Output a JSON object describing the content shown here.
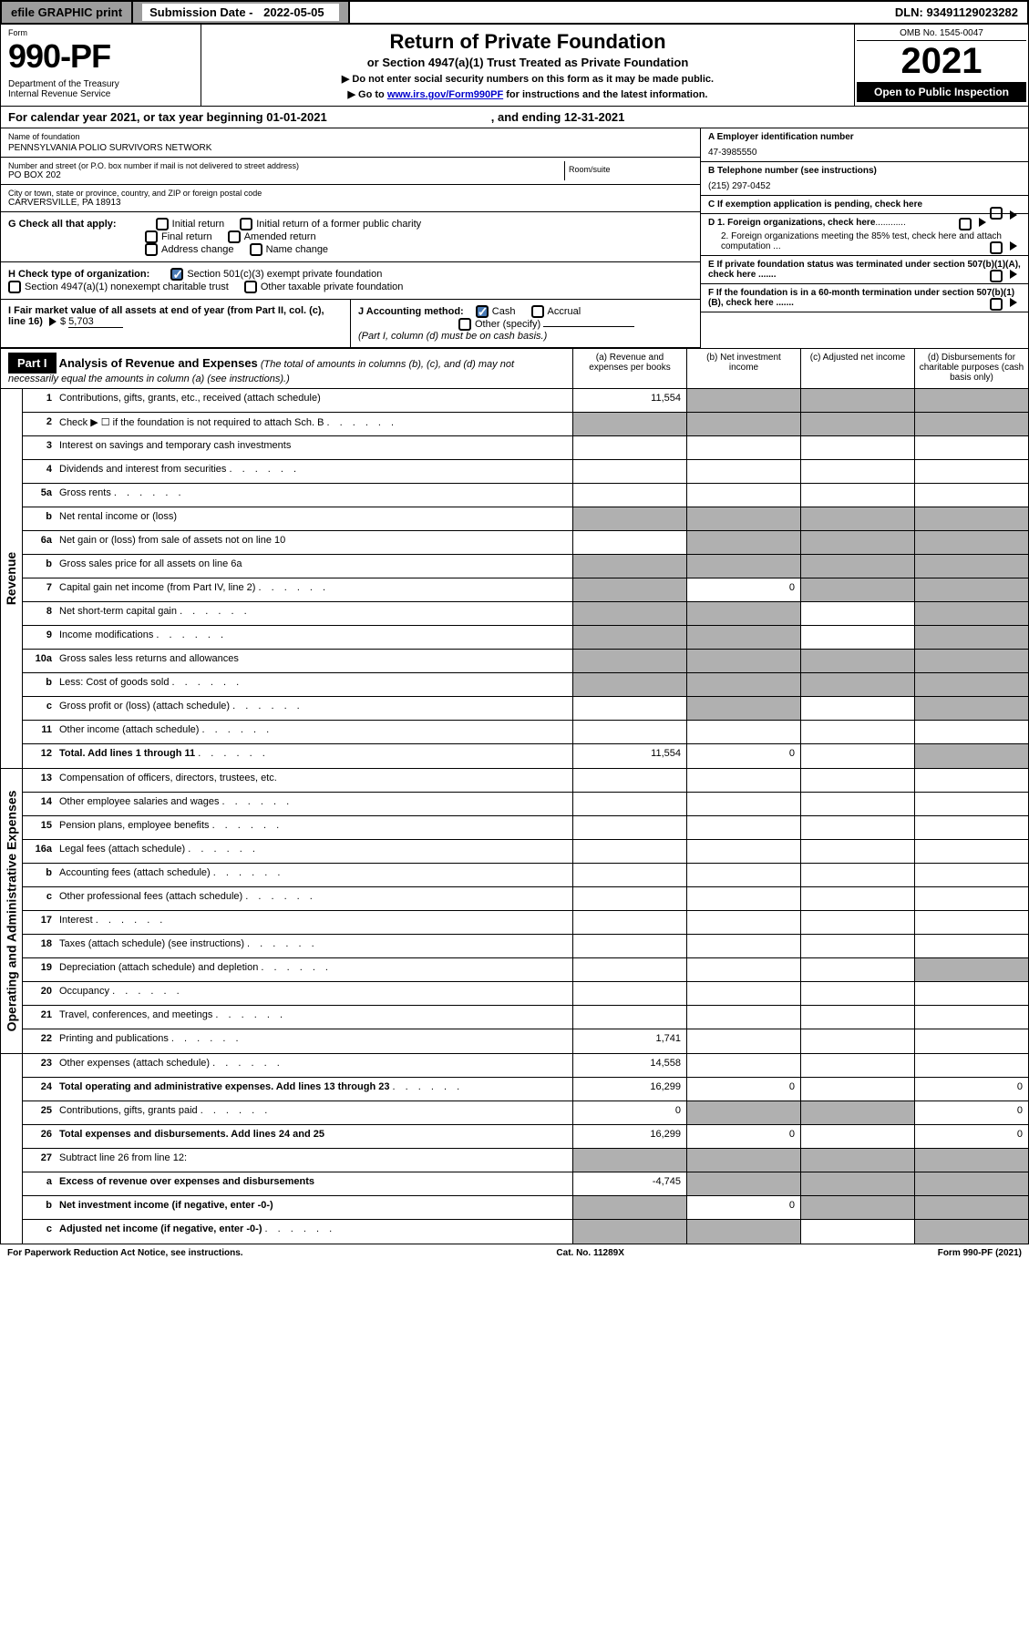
{
  "topbar": {
    "efile": "efile GRAPHIC print",
    "sub_label": "Submission Date - ",
    "sub_date": "2022-05-05",
    "dln": "DLN: 93491129023282"
  },
  "header": {
    "form_label": "Form",
    "form_no": "990-PF",
    "dept": "Department of the Treasury\nInternal Revenue Service",
    "title": "Return of Private Foundation",
    "subtitle": "or Section 4947(a)(1) Trust Treated as Private Foundation",
    "note1": "▶ Do not enter social security numbers on this form as it may be made public.",
    "note2_a": "▶ Go to ",
    "note2_link": "www.irs.gov/Form990PF",
    "note2_b": " for instructions and the latest information.",
    "omb": "OMB No. 1545-0047",
    "year": "2021",
    "open": "Open to Public Inspection"
  },
  "cal": {
    "a": "For calendar year 2021, or tax year beginning 01-01-2021",
    "b": ", and ending 12-31-2021"
  },
  "info": {
    "name_lbl": "Name of foundation",
    "name": "PENNSYLVANIA POLIO SURVIVORS NETWORK",
    "addr_lbl": "Number and street (or P.O. box number if mail is not delivered to street address)",
    "addr": "PO BOX 202",
    "room_lbl": "Room/suite",
    "city_lbl": "City or town, state or province, country, and ZIP or foreign postal code",
    "city": "CARVERSVILLE, PA  18913",
    "a_lbl": "A Employer identification number",
    "ein": "47-3985550",
    "b_lbl": "B Telephone number (see instructions)",
    "phone": "(215) 297-0452",
    "c_lbl": "C If exemption application is pending, check here",
    "d1": "D 1. Foreign organizations, check here",
    "d2": "2. Foreign organizations meeting the 85% test, check here and attach computation ...",
    "e": "E  If private foundation status was terminated under section 507(b)(1)(A), check here .......",
    "f": "F  If the foundation is in a 60-month termination under section 507(b)(1)(B), check here .......",
    "g_lbl": "G Check all that apply:",
    "g_opts": [
      "Initial return",
      "Initial return of a former public charity",
      "Final return",
      "Amended return",
      "Address change",
      "Name change"
    ],
    "h_lbl": "H Check type of organization:",
    "h1": "Section 501(c)(3) exempt private foundation",
    "h2": "Section 4947(a)(1) nonexempt charitable trust",
    "h3": "Other taxable private foundation",
    "i_lbl": "I Fair market value of all assets at end of year (from Part II, col. (c), line 16)",
    "i_val": "5,703",
    "j_lbl": "J Accounting method:",
    "j1": "Cash",
    "j2": "Accrual",
    "j3": "Other (specify)",
    "j_note": "(Part I, column (d) must be on cash basis.)"
  },
  "part1": {
    "hdr": "Part I",
    "title": "Analysis of Revenue and Expenses",
    "title_note": " (The total of amounts in columns (b), (c), and (d) may not necessarily equal the amounts in column (a) (see instructions).)",
    "col_a": "(a) Revenue and expenses per books",
    "col_b": "(b) Net investment income",
    "col_c": "(c) Adjusted net income",
    "col_d": "(d) Disbursements for charitable purposes (cash basis only)"
  },
  "sections": {
    "rev": "Revenue",
    "exp": "Operating and Administrative Expenses"
  },
  "rows": [
    {
      "n": "1",
      "d": "Contributions, gifts, grants, etc., received (attach schedule)",
      "a": "11,554",
      "s": [
        "",
        "b",
        "b",
        "b"
      ]
    },
    {
      "n": "2",
      "d": "Check ▶ ☐ if the foundation is not required to attach Sch. B",
      "dots": true,
      "s": [
        "b",
        "b",
        "b",
        "b"
      ]
    },
    {
      "n": "3",
      "d": "Interest on savings and temporary cash investments",
      "s": [
        "",
        "",
        "",
        ""
      ]
    },
    {
      "n": "4",
      "d": "Dividends and interest from securities",
      "dots": true,
      "s": [
        "",
        "",
        "",
        ""
      ]
    },
    {
      "n": "5a",
      "d": "Gross rents",
      "dots": true,
      "s": [
        "",
        "",
        "",
        ""
      ]
    },
    {
      "n": "b",
      "d": "Net rental income or (loss)",
      "s": [
        "b",
        "b",
        "b",
        "b"
      ]
    },
    {
      "n": "6a",
      "d": "Net gain or (loss) from sale of assets not on line 10",
      "s": [
        "",
        "b",
        "b",
        "b"
      ]
    },
    {
      "n": "b",
      "d": "Gross sales price for all assets on line 6a",
      "s": [
        "b",
        "b",
        "b",
        "b"
      ]
    },
    {
      "n": "7",
      "d": "Capital gain net income (from Part IV, line 2)",
      "dots": true,
      "b": "0",
      "s": [
        "b",
        "",
        "b",
        "b"
      ]
    },
    {
      "n": "8",
      "d": "Net short-term capital gain",
      "dots": true,
      "s": [
        "b",
        "b",
        "",
        "b"
      ]
    },
    {
      "n": "9",
      "d": "Income modifications",
      "dots": true,
      "s": [
        "b",
        "b",
        "",
        "b"
      ]
    },
    {
      "n": "10a",
      "d": "Gross sales less returns and allowances",
      "s": [
        "b",
        "b",
        "b",
        "b"
      ]
    },
    {
      "n": "b",
      "d": "Less: Cost of goods sold",
      "dots": true,
      "s": [
        "b",
        "b",
        "b",
        "b"
      ]
    },
    {
      "n": "c",
      "d": "Gross profit or (loss) (attach schedule)",
      "dots": true,
      "s": [
        "",
        "b",
        "",
        "b"
      ]
    },
    {
      "n": "11",
      "d": "Other income (attach schedule)",
      "dots": true,
      "s": [
        "",
        "",
        "",
        ""
      ]
    },
    {
      "n": "12",
      "d": "Total. Add lines 1 through 11",
      "dots": true,
      "bold": true,
      "a": "11,554",
      "b": "0",
      "s": [
        "",
        "",
        "",
        "b"
      ]
    },
    {
      "n": "13",
      "d": "Compensation of officers, directors, trustees, etc.",
      "s": [
        "",
        "",
        "",
        ""
      ]
    },
    {
      "n": "14",
      "d": "Other employee salaries and wages",
      "dots": true,
      "s": [
        "",
        "",
        "",
        ""
      ]
    },
    {
      "n": "15",
      "d": "Pension plans, employee benefits",
      "dots": true,
      "s": [
        "",
        "",
        "",
        ""
      ]
    },
    {
      "n": "16a",
      "d": "Legal fees (attach schedule)",
      "dots": true,
      "s": [
        "",
        "",
        "",
        ""
      ]
    },
    {
      "n": "b",
      "d": "Accounting fees (attach schedule)",
      "dots": true,
      "s": [
        "",
        "",
        "",
        ""
      ]
    },
    {
      "n": "c",
      "d": "Other professional fees (attach schedule)",
      "dots": true,
      "s": [
        "",
        "",
        "",
        ""
      ]
    },
    {
      "n": "17",
      "d": "Interest",
      "dots": true,
      "s": [
        "",
        "",
        "",
        ""
      ]
    },
    {
      "n": "18",
      "d": "Taxes (attach schedule) (see instructions)",
      "dots": true,
      "s": [
        "",
        "",
        "",
        ""
      ]
    },
    {
      "n": "19",
      "d": "Depreciation (attach schedule) and depletion",
      "dots": true,
      "s": [
        "",
        "",
        "",
        "b"
      ]
    },
    {
      "n": "20",
      "d": "Occupancy",
      "dots": true,
      "s": [
        "",
        "",
        "",
        ""
      ]
    },
    {
      "n": "21",
      "d": "Travel, conferences, and meetings",
      "dots": true,
      "s": [
        "",
        "",
        "",
        ""
      ]
    },
    {
      "n": "22",
      "d": "Printing and publications",
      "dots": true,
      "a": "1,741",
      "s": [
        "",
        "",
        "",
        ""
      ]
    },
    {
      "n": "23",
      "d": "Other expenses (attach schedule)",
      "dots": true,
      "a": "14,558",
      "s": [
        "",
        "",
        "",
        ""
      ]
    },
    {
      "n": "24",
      "d": "Total operating and administrative expenses. Add lines 13 through 23",
      "dots": true,
      "bold": true,
      "a": "16,299",
      "b": "0",
      "dv": "0",
      "s": [
        "",
        "",
        "",
        ""
      ]
    },
    {
      "n": "25",
      "d": "Contributions, gifts, grants paid",
      "dots": true,
      "a": "0",
      "dv": "0",
      "s": [
        "",
        "b",
        "b",
        ""
      ]
    },
    {
      "n": "26",
      "d": "Total expenses and disbursements. Add lines 24 and 25",
      "bold": true,
      "a": "16,299",
      "b": "0",
      "dv": "0",
      "s": [
        "",
        "",
        "",
        ""
      ]
    },
    {
      "n": "27",
      "d": "Subtract line 26 from line 12:",
      "s": [
        "b",
        "b",
        "b",
        "b"
      ]
    },
    {
      "n": "a",
      "d": "Excess of revenue over expenses and disbursements",
      "bold": true,
      "a": "-4,745",
      "s": [
        "",
        "b",
        "b",
        "b"
      ]
    },
    {
      "n": "b",
      "d": "Net investment income (if negative, enter -0-)",
      "bold": true,
      "b": "0",
      "s": [
        "b",
        "",
        "b",
        "b"
      ]
    },
    {
      "n": "c",
      "d": "Adjusted net income (if negative, enter -0-)",
      "dots": true,
      "bold": true,
      "s": [
        "b",
        "b",
        "",
        "b"
      ]
    }
  ],
  "footer": {
    "left": "For Paperwork Reduction Act Notice, see instructions.",
    "mid": "Cat. No. 11289X",
    "right": "Form 990-PF (2021)"
  }
}
